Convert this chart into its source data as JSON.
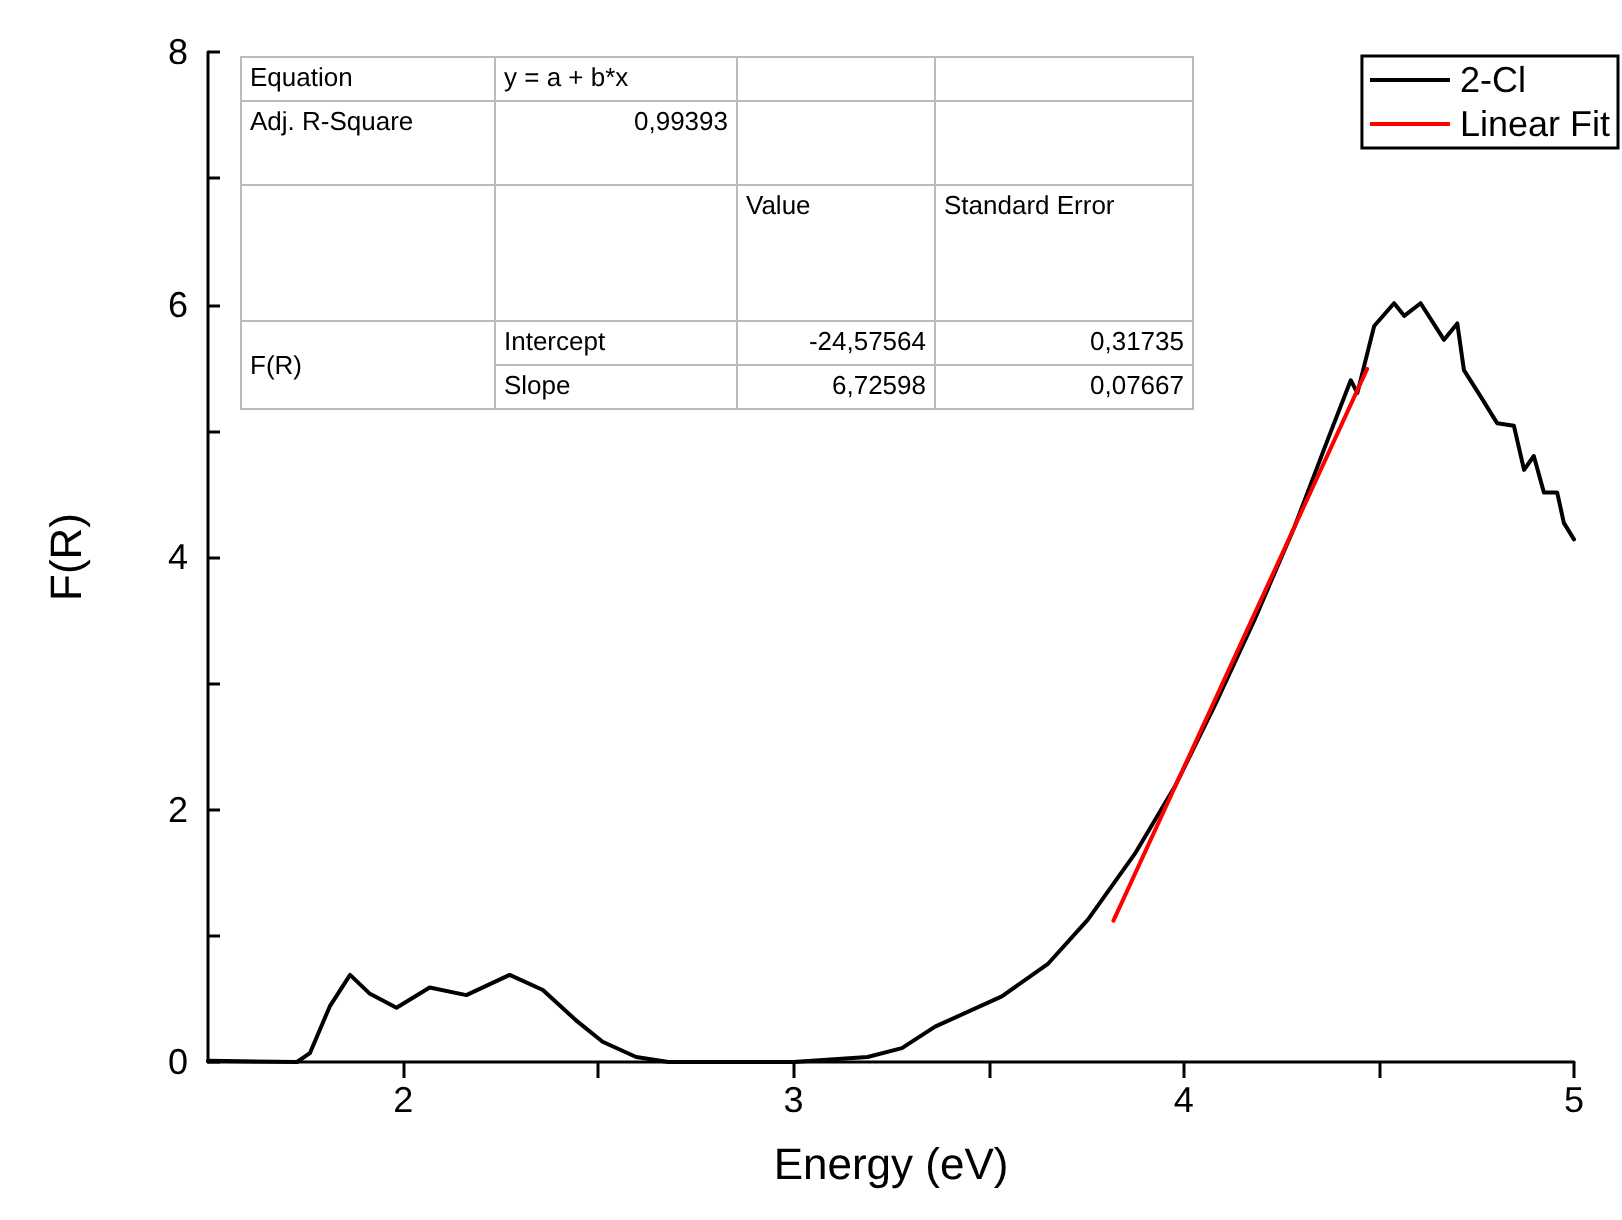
{
  "chart_data": {
    "type": "line",
    "xlabel": "Energy (eV)",
    "ylabel": "F(R)",
    "xlim": [
      1.5,
      5
    ],
    "xticks": [
      2,
      {
        "value": 2.5,
        "label": null
      },
      3,
      {
        "value": 3.5,
        "label": null
      },
      4,
      {
        "value": 4.5,
        "label": null
      },
      5
    ],
    "ylim": [
      0,
      8
    ],
    "yticks": [
      0,
      {
        "value": 1,
        "label": null
      },
      2,
      {
        "value": 3,
        "label": null
      },
      4,
      {
        "value": 5,
        "label": null
      },
      6,
      {
        "value": 7,
        "label": null
      },
      8
    ],
    "grid": false,
    "legend": "top right",
    "marker": "none",
    "line_style": "solid",
    "series": [
      {
        "name": "2-Cl",
        "color": "#000000",
        "x": [
          1.5,
          1.728,
          1.761,
          1.812,
          1.864,
          1.915,
          1.983,
          2.068,
          2.162,
          2.273,
          2.358,
          2.443,
          2.511,
          2.597,
          2.68,
          3.0,
          3.19,
          3.278,
          3.363,
          3.534,
          3.653,
          3.755,
          3.875,
          3.977,
          4.079,
          4.181,
          4.284,
          4.369,
          4.428,
          4.445,
          4.488,
          4.539,
          4.565,
          4.607,
          4.667,
          4.701,
          4.718,
          4.761,
          4.803,
          4.846,
          4.872,
          4.897,
          4.923,
          4.957,
          4.974,
          5.0
        ],
        "values": [
          0.01,
          0.0,
          0.07,
          0.44,
          0.69,
          0.54,
          0.43,
          0.59,
          0.53,
          0.69,
          0.57,
          0.33,
          0.16,
          0.04,
          0.0,
          0.0,
          0.04,
          0.11,
          0.28,
          0.52,
          0.78,
          1.13,
          1.65,
          2.18,
          2.82,
          3.5,
          4.24,
          4.93,
          5.4,
          5.3,
          5.83,
          6.01,
          5.91,
          6.01,
          5.72,
          5.85,
          5.48,
          5.27,
          5.06,
          5.04,
          4.69,
          4.8,
          4.51,
          4.51,
          4.27,
          4.14
        ]
      },
      {
        "name": "Linear Fit",
        "color": "#ff0000",
        "x": [
          3.82,
          4.47
        ],
        "values": [
          1.12,
          5.49
        ]
      }
    ],
    "annotations": [
      "Equation",
      "y = a + b*x",
      "Adj. R-Square",
      "0,99393",
      "Value",
      "Standard Error",
      "F(R)",
      "Intercept",
      "-24,57564",
      "0,31735",
      "Slope",
      "6,72598",
      "0,07667"
    ]
  }
}
